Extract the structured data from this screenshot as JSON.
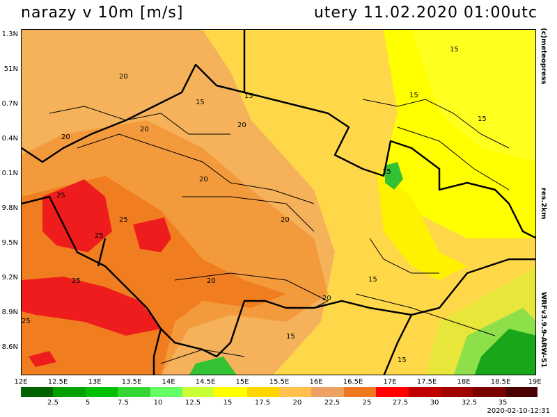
{
  "header": {
    "title_left": "narazy v 10m [m/s]",
    "title_right": "utery 11.02.2020 01:00utc"
  },
  "side_labels": {
    "credit": "(c)meteopress",
    "resolution": "res.2km",
    "model": "WRFv3.9.9-ARW-S1"
  },
  "axes": {
    "lat_labels": [
      "1.3N",
      "51N",
      "0.7N",
      "0.4N",
      "0.1N",
      "9.8N",
      "9.5N",
      "9.2N",
      "8.9N",
      "8.6N"
    ],
    "lon_labels": [
      "12E",
      "12.5E",
      "13E",
      "13.5E",
      "14E",
      "14.5E",
      "15E",
      "15.5E",
      "16E",
      "16.5E",
      "17E",
      "17.5E",
      "18E",
      "18.5E",
      "19E"
    ]
  },
  "legend": {
    "labels": [
      "2.5",
      "5",
      "7.5",
      "10",
      "12.5",
      "15",
      "17.5",
      "20",
      "22.5",
      "25",
      "27.5",
      "30",
      "32.5",
      "35"
    ],
    "colors": [
      "#006400",
      "#00a000",
      "#00c000",
      "#33d633",
      "#66ff66",
      "#ccff33",
      "#ffff00",
      "#ffd700",
      "#ffc04d",
      "#f0a060",
      "#f07820",
      "#ff0000",
      "#c00000",
      "#a00000",
      "#7a0000",
      "#4a0000"
    ]
  },
  "map": {
    "contour_labels": [
      "15",
      "15",
      "15",
      "15",
      "15",
      "15",
      "15",
      "15",
      "15",
      "20",
      "20",
      "20",
      "20",
      "20",
      "20",
      "20",
      "20",
      "25",
      "25",
      "25",
      "25",
      "25"
    ]
  },
  "footer": {
    "run_timestamp": "2020-02-10-12:31"
  }
}
